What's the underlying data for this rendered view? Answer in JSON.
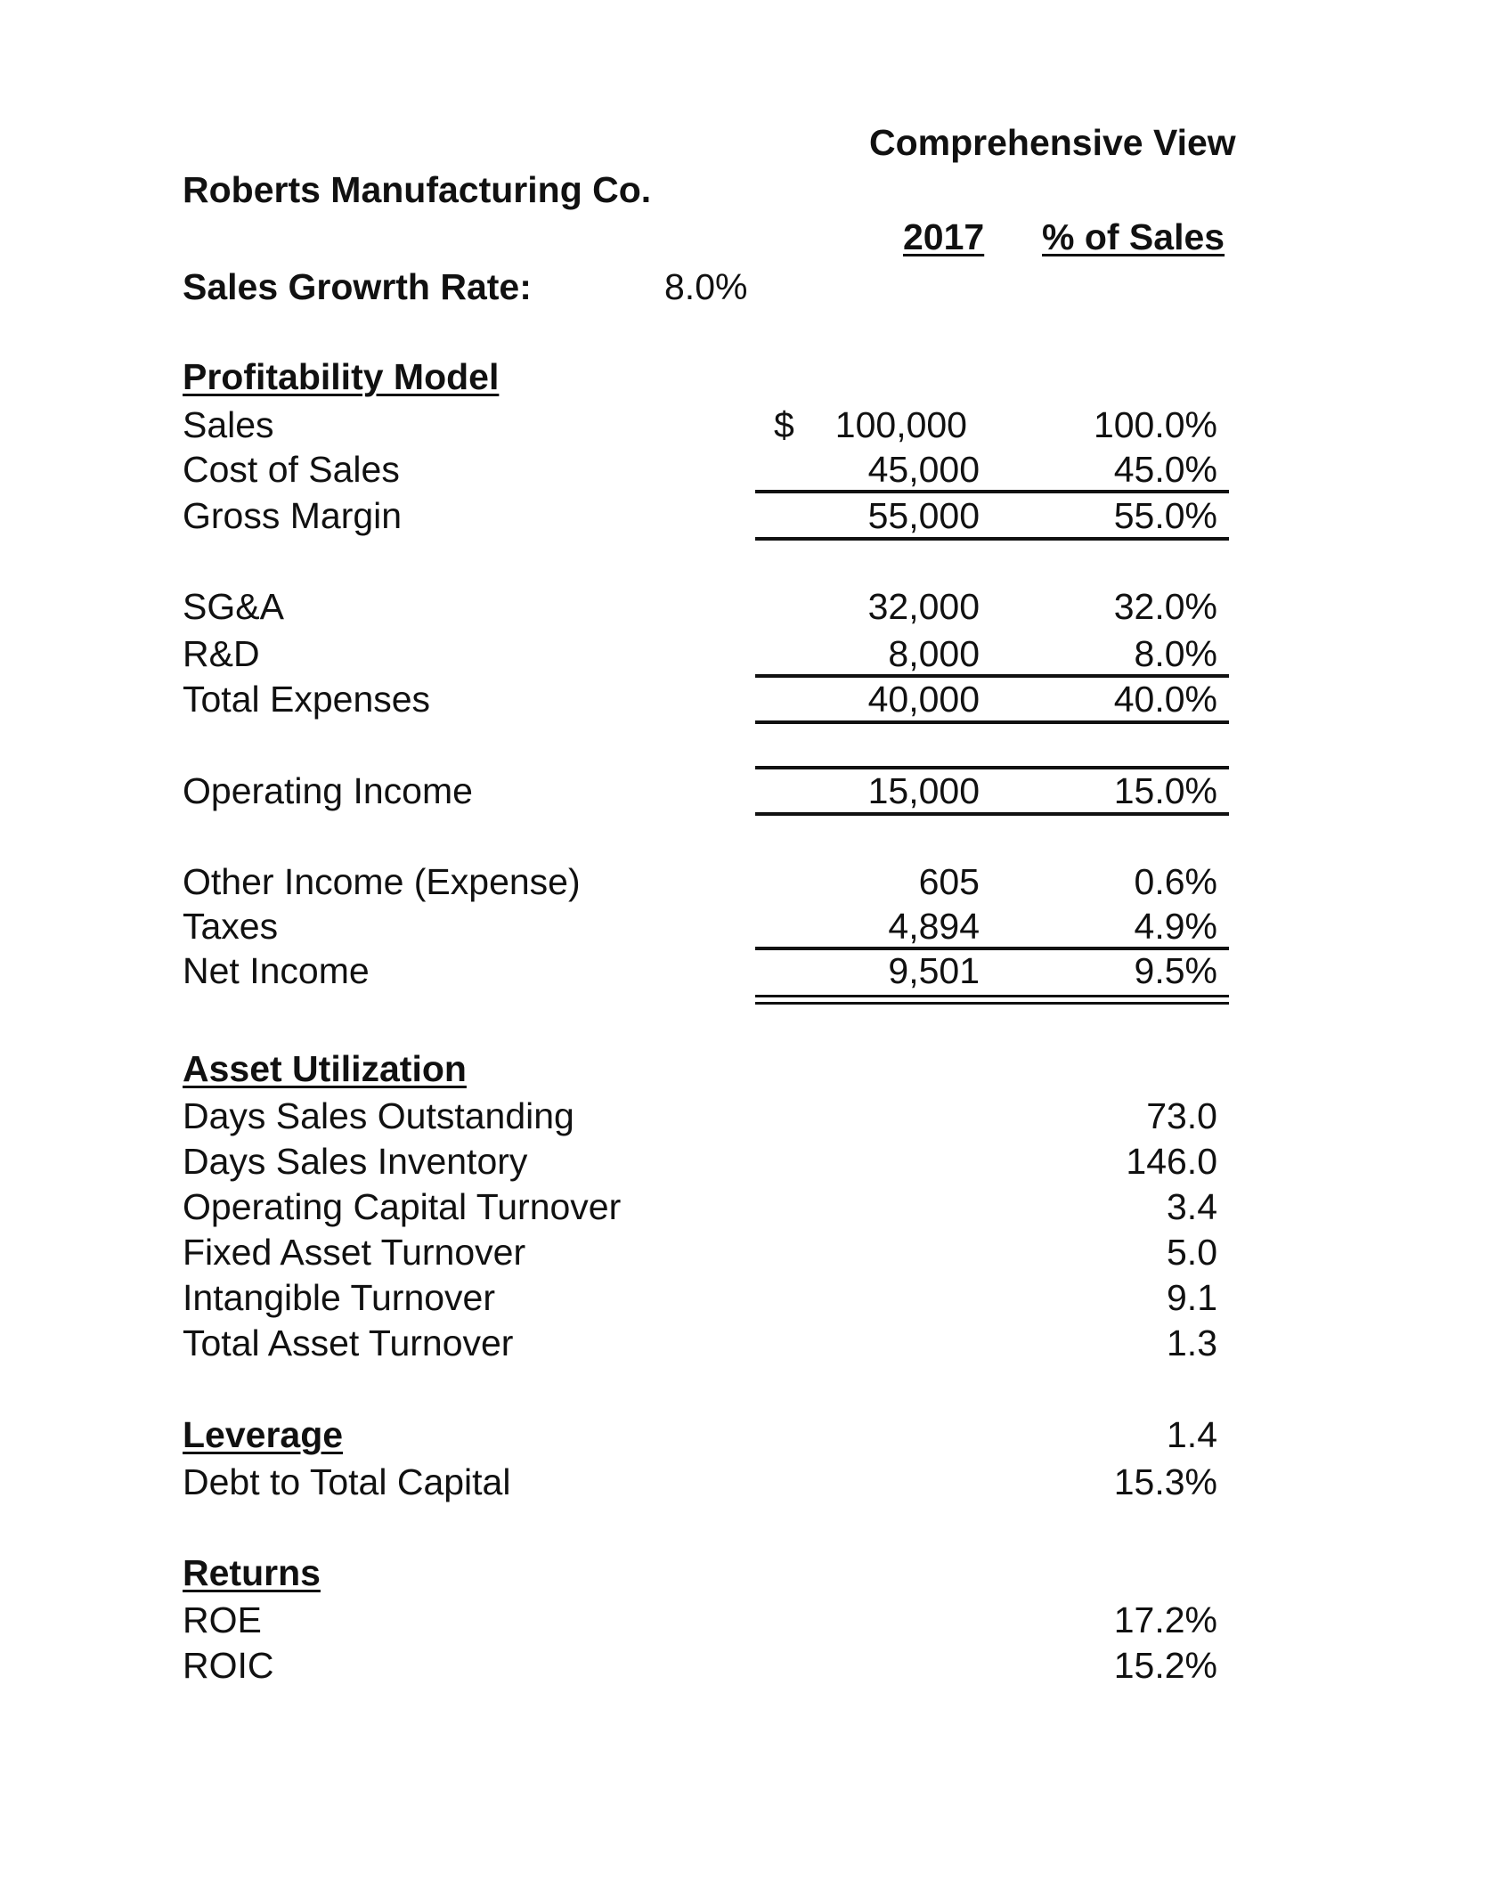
{
  "header": {
    "view_title": "Comprehensive View",
    "company": "Roberts Manufacturing Co.",
    "col_year": "2017",
    "col_pct": "% of Sales",
    "growth_label": "Sales Growrth Rate:",
    "growth_value": "8.0%"
  },
  "profitability": {
    "title": "Profitability Model",
    "currency": "$",
    "rows": [
      {
        "label": "Sales",
        "value": "100,000",
        "pct": "100.0%"
      },
      {
        "label": "Cost of Sales",
        "value": "45,000",
        "pct": "45.0%"
      },
      {
        "label": "Gross Margin",
        "value": "55,000",
        "pct": "55.0%"
      },
      {
        "label": "SG&A",
        "value": "32,000",
        "pct": "32.0%"
      },
      {
        "label": "R&D",
        "value": "8,000",
        "pct": "8.0%"
      },
      {
        "label": "Total Expenses",
        "value": "40,000",
        "pct": "40.0%"
      },
      {
        "label": "Operating Income",
        "value": "15,000",
        "pct": "15.0%"
      },
      {
        "label": "Other Income (Expense)",
        "value": "605",
        "pct": "0.6%"
      },
      {
        "label": "Taxes",
        "value": "4,894",
        "pct": "4.9%"
      },
      {
        "label": "Net Income",
        "value": "9,501",
        "pct": "9.5%"
      }
    ]
  },
  "asset_utilization": {
    "title": "Asset Utilization",
    "rows": [
      {
        "label": "Days Sales Outstanding",
        "value": "73.0"
      },
      {
        "label": "Days Sales Inventory",
        "value": "146.0"
      },
      {
        "label": "Operating Capital Turnover",
        "value": "3.4"
      },
      {
        "label": "Fixed Asset Turnover",
        "value": "5.0"
      },
      {
        "label": "Intangible Turnover",
        "value": "9.1"
      },
      {
        "label": "Total Asset Turnover",
        "value": "1.3"
      }
    ]
  },
  "leverage": {
    "title": "Leverage",
    "title_value": "1.4",
    "rows": [
      {
        "label": "Debt to Total Capital",
        "value": "15.3%"
      }
    ]
  },
  "returns": {
    "title": "Returns",
    "rows": [
      {
        "label": "ROE",
        "value": "17.2%"
      },
      {
        "label": "ROIC",
        "value": "15.2%"
      }
    ]
  }
}
